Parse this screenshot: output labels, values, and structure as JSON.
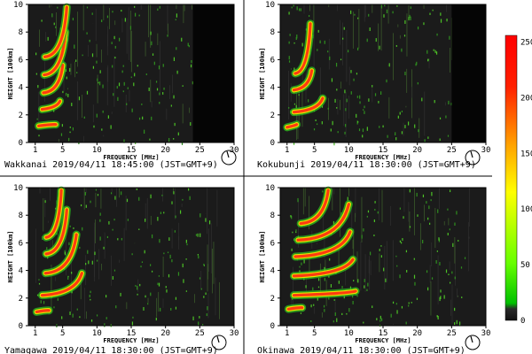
{
  "colorbar": {
    "ticks": [
      "0",
      "50",
      "100",
      "150",
      "200",
      "250"
    ],
    "stops": [
      "#111111",
      "#2a2a2a",
      "#00c000",
      "#66ff00",
      "#ffff00",
      "#ffa000",
      "#ff2000",
      "#ff0000"
    ],
    "range": [
      0,
      256
    ]
  },
  "chart_data": [
    {
      "type": "heatmap",
      "station": "Wakkanai",
      "caption": "Wakkanai 2019/04/11 18:45:00 (JST=GMT+9)",
      "xlabel": "FREQUENCY [MHz]",
      "ylabel": "HEIGHT [100km]",
      "xlim": [
        0,
        30
      ],
      "ylim": [
        0,
        10
      ],
      "xticks": [
        1,
        5,
        10,
        15,
        20,
        25,
        30
      ],
      "yticks": [
        0,
        2,
        4,
        6,
        8,
        10
      ],
      "black_band": [
        24,
        30
      ],
      "traces": [
        {
          "from": [
            1.5,
            1.2
          ],
          "to": [
            4.0,
            1.3
          ],
          "curve": 0.0
        },
        {
          "from": [
            2.0,
            2.4
          ],
          "to": [
            4.6,
            3.0
          ],
          "curve": 0.5
        },
        {
          "from": [
            2.2,
            3.6
          ],
          "to": [
            5.0,
            5.6
          ],
          "curve": 0.6
        },
        {
          "from": [
            2.3,
            4.9
          ],
          "to": [
            5.4,
            8.0
          ],
          "curve": 0.6
        },
        {
          "from": [
            2.4,
            6.2
          ],
          "to": [
            5.6,
            9.8
          ],
          "curve": 0.5
        }
      ]
    },
    {
      "type": "heatmap",
      "station": "Kokubunji",
      "caption": "Kokubunji 2019/04/11 18:30:00 (JST=GMT+9)",
      "xlabel": "FREQUENCY [MHz]",
      "ylabel": "HEIGHT [100km]",
      "xlim": [
        0,
        30
      ],
      "ylim": [
        0,
        10
      ],
      "xticks": [
        1,
        5,
        10,
        15,
        20,
        25,
        30
      ],
      "yticks": [
        0,
        2,
        4,
        6,
        8,
        10
      ],
      "black_band": [
        25,
        30
      ],
      "traces": [
        {
          "from": [
            1.0,
            1.1
          ],
          "to": [
            2.4,
            1.3
          ],
          "curve": 0.2
        },
        {
          "from": [
            2.0,
            2.2
          ],
          "to": [
            6.2,
            3.2
          ],
          "curve": 0.6
        },
        {
          "from": [
            2.0,
            3.8
          ],
          "to": [
            4.6,
            5.2
          ],
          "curve": 0.6
        },
        {
          "from": [
            2.2,
            5.0
          ],
          "to": [
            4.4,
            8.6
          ],
          "curve": 0.6
        }
      ]
    },
    {
      "type": "heatmap",
      "station": "Yamagawa",
      "caption": "Yamagawa 2019/04/11 18:30:00 (JST=GMT+9)",
      "xlabel": "FREQUENCY [MHz]",
      "ylabel": "HEIGHT [100km]",
      "xlim": [
        0,
        30
      ],
      "ylim": [
        0,
        10
      ],
      "xticks": [
        1,
        5,
        10,
        15,
        20,
        25,
        30
      ],
      "yticks": [
        0,
        2,
        4,
        6,
        8,
        10
      ],
      "black_band": null,
      "traces": [
        {
          "from": [
            1.2,
            1.0
          ],
          "to": [
            3.0,
            1.1
          ],
          "curve": 0.1
        },
        {
          "from": [
            2.0,
            2.2
          ],
          "to": [
            7.8,
            3.8
          ],
          "curve": 0.6
        },
        {
          "from": [
            2.5,
            3.8
          ],
          "to": [
            7.0,
            6.6
          ],
          "curve": 0.6
        },
        {
          "from": [
            2.6,
            5.2
          ],
          "to": [
            5.6,
            8.4
          ],
          "curve": 0.6
        },
        {
          "from": [
            2.6,
            6.4
          ],
          "to": [
            4.8,
            9.8
          ],
          "curve": 0.5
        }
      ]
    },
    {
      "type": "heatmap",
      "station": "Okinawa",
      "caption": "Okinawa 2019/04/11 18:30:00 (JST=GMT+9)",
      "xlabel": "FREQUENCY [MHz]",
      "ylabel": "HEIGHT [100km]",
      "xlim": [
        0,
        30
      ],
      "ylim": [
        0,
        10
      ],
      "xticks": [
        1,
        5,
        10,
        15,
        20,
        25,
        30
      ],
      "yticks": [
        0,
        2,
        4,
        6,
        8,
        10
      ],
      "black_band": null,
      "traces": [
        {
          "from": [
            1.2,
            1.2
          ],
          "to": [
            3.2,
            1.3
          ],
          "curve": 0.1
        },
        {
          "from": [
            2.0,
            2.2
          ],
          "to": [
            11.0,
            2.5
          ],
          "curve": 0.5
        },
        {
          "from": [
            2.0,
            3.6
          ],
          "to": [
            10.6,
            4.8
          ],
          "curve": 0.6
        },
        {
          "from": [
            2.2,
            5.0
          ],
          "to": [
            10.2,
            6.8
          ],
          "curve": 0.6
        },
        {
          "from": [
            2.6,
            6.2
          ],
          "to": [
            10.0,
            8.8
          ],
          "curve": 0.6
        },
        {
          "from": [
            3.0,
            7.4
          ],
          "to": [
            7.0,
            9.8
          ],
          "curve": 0.5
        }
      ]
    }
  ]
}
